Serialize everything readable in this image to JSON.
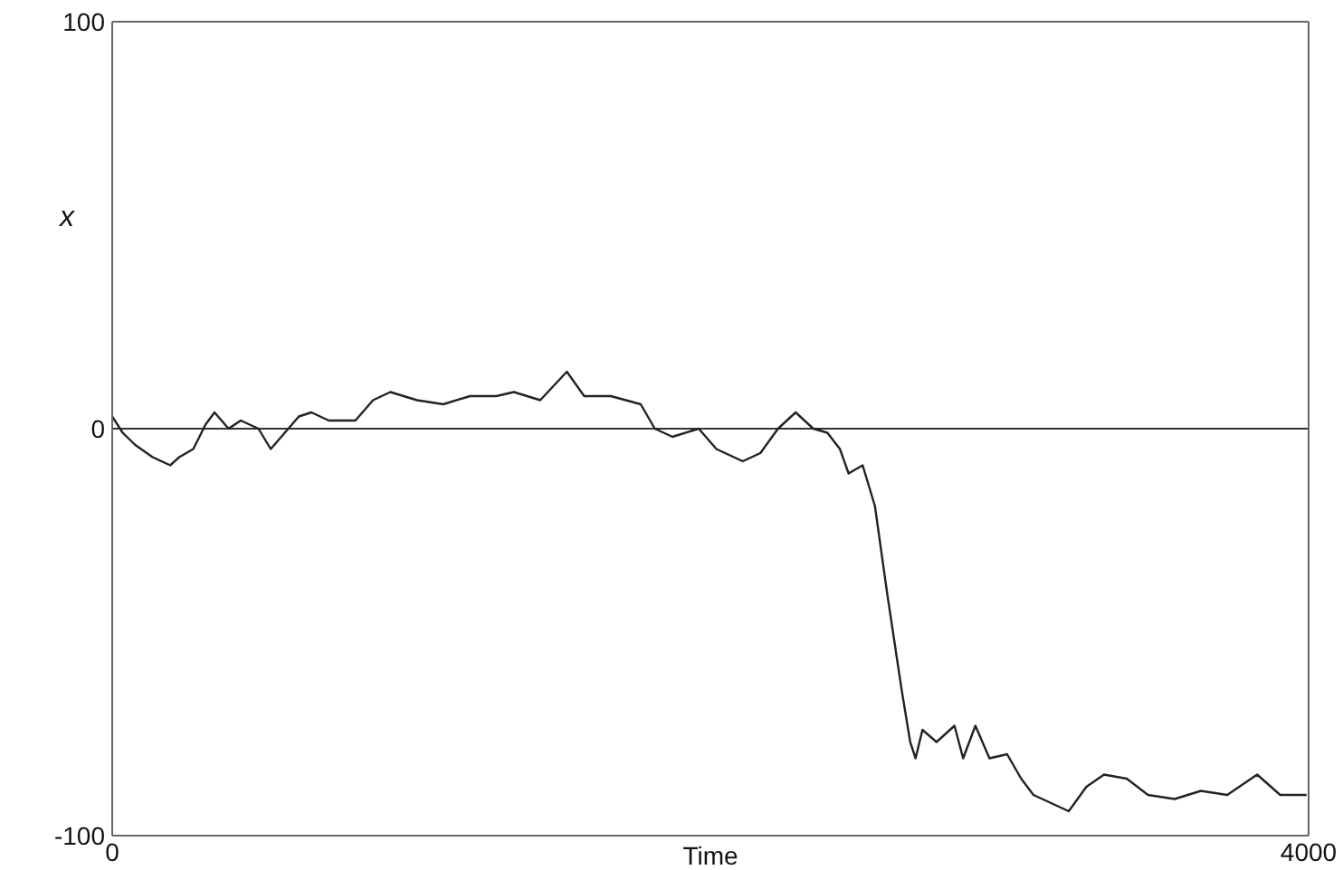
{
  "chart_data": {
    "type": "line",
    "xlabel": "Time",
    "ylabel": "x",
    "x": [
      0,
      35,
      77,
      135,
      194,
      224,
      271,
      312,
      342,
      389,
      430,
      489,
      530,
      577,
      624,
      666,
      724,
      813,
      872,
      930,
      1019,
      1107,
      1196,
      1284,
      1343,
      1431,
      1520,
      1578,
      1667,
      1767,
      1814,
      1873,
      1961,
      2020,
      2108,
      2167,
      2226,
      2285,
      2344,
      2391,
      2433,
      2462,
      2509,
      2550,
      2592,
      2639,
      2668,
      2686,
      2709,
      2756,
      2816,
      2845,
      2886,
      2933,
      2992,
      3039,
      3080,
      3139,
      3198,
      3257,
      3316,
      3392,
      3463,
      3552,
      3640,
      3728,
      3828,
      3905,
      3993
    ],
    "series": [
      {
        "color": "#222222",
        "values": [
          3,
          -1,
          -4,
          -7,
          -9,
          -7,
          -5,
          1,
          4,
          0,
          2,
          0,
          -5,
          -1,
          3,
          4,
          2,
          2,
          7,
          9,
          7,
          6,
          8,
          8,
          9,
          7,
          14,
          8,
          8,
          6,
          0,
          -2,
          0,
          -5,
          -8,
          -6,
          0,
          4,
          0,
          -1,
          -5,
          -11,
          -9,
          -19,
          -41,
          -64,
          -77,
          -81,
          -74,
          -77,
          -73,
          -81,
          -73,
          -81,
          -80,
          -86,
          -90,
          -92,
          -94,
          -88,
          -85,
          -86,
          -90,
          -91,
          -89,
          -90,
          -85,
          -90,
          -90
        ]
      }
    ],
    "xlim": [
      0,
      4000
    ],
    "xticks": [
      0,
      4000
    ],
    "ylim": [
      -100,
      100
    ],
    "yticks": [
      -100,
      0,
      100
    ],
    "ref_lines": [
      {
        "axis": "y",
        "value": 0,
        "color": "#333333"
      }
    ]
  }
}
